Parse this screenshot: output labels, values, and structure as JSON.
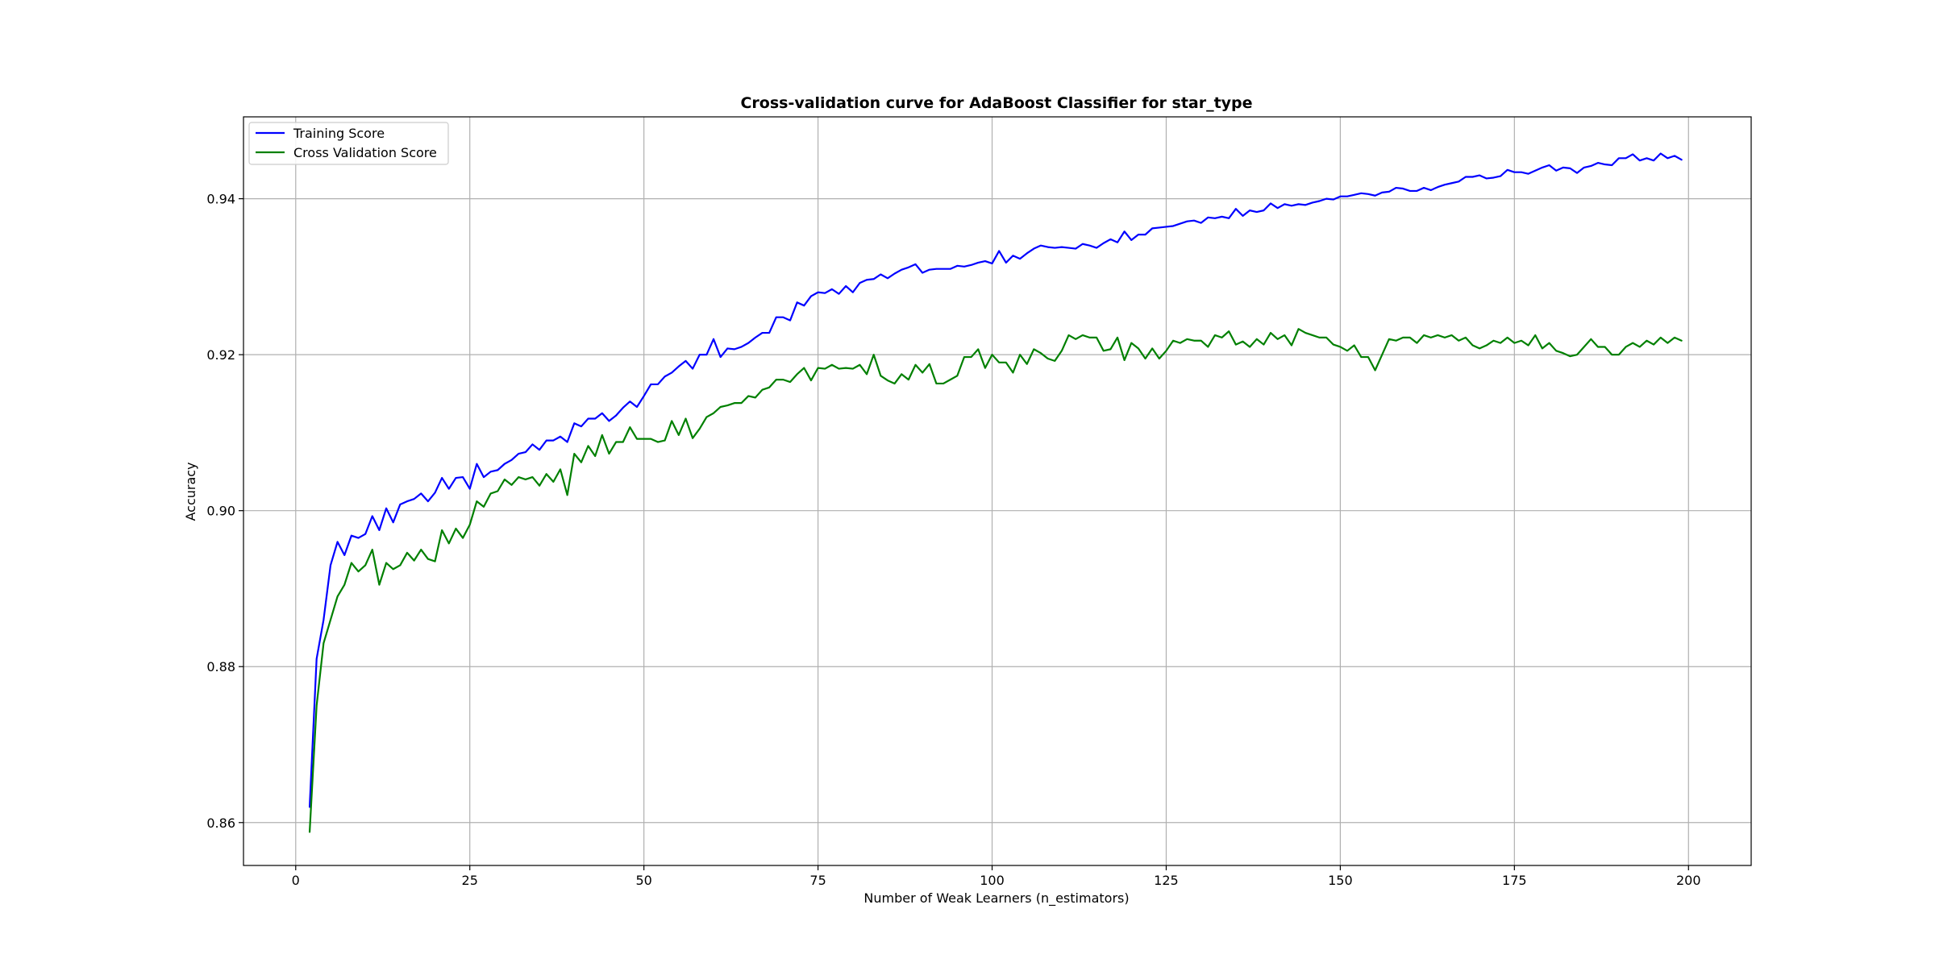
{
  "chart_data": {
    "type": "line",
    "title": "Cross-validation curve for AdaBoost Classifier for star_type",
    "xlabel": "Number of Weak Learners (n_estimators)",
    "ylabel": "Accuracy",
    "xlim": [
      -7.5,
      209
    ],
    "ylim": [
      0.8545,
      0.9505
    ],
    "xticks": [
      0,
      25,
      50,
      75,
      100,
      125,
      150,
      175,
      200
    ],
    "yticks": [
      0.86,
      0.88,
      0.9,
      0.92,
      0.94
    ],
    "ytick_labels": [
      "0.86",
      "0.88",
      "0.90",
      "0.92",
      "0.94"
    ],
    "grid": true,
    "legend": "top-left",
    "x": [
      2,
      3,
      4,
      5,
      6,
      7,
      8,
      9,
      10,
      11,
      12,
      13,
      14,
      15,
      16,
      17,
      18,
      19,
      20,
      21,
      22,
      23,
      24,
      25,
      26,
      27,
      28,
      29,
      30,
      31,
      32,
      33,
      34,
      35,
      36,
      37,
      38,
      39,
      40,
      41,
      42,
      43,
      44,
      45,
      46,
      47,
      48,
      49,
      50,
      51,
      52,
      53,
      54,
      55,
      56,
      57,
      58,
      59,
      60,
      61,
      62,
      63,
      64,
      65,
      66,
      67,
      68,
      69,
      70,
      71,
      72,
      73,
      74,
      75,
      76,
      77,
      78,
      79,
      80,
      81,
      82,
      83,
      84,
      85,
      86,
      87,
      88,
      89,
      90,
      91,
      92,
      93,
      94,
      95,
      96,
      97,
      98,
      99,
      100,
      101,
      102,
      103,
      104,
      105,
      106,
      107,
      108,
      109,
      110,
      111,
      112,
      113,
      114,
      115,
      116,
      117,
      118,
      119,
      120,
      121,
      122,
      123,
      124,
      125,
      126,
      127,
      128,
      129,
      130,
      131,
      132,
      133,
      134,
      135,
      136,
      137,
      138,
      139,
      140,
      141,
      142,
      143,
      144,
      145,
      146,
      147,
      148,
      149,
      150,
      151,
      152,
      153,
      154,
      155,
      156,
      157,
      158,
      159,
      160,
      161,
      162,
      163,
      164,
      165,
      166,
      167,
      168,
      169,
      170,
      171,
      172,
      173,
      174,
      175,
      176,
      177,
      178,
      179,
      180,
      181,
      182,
      183,
      184,
      185,
      186,
      187,
      188,
      189,
      190,
      191,
      192,
      193,
      194,
      195,
      196,
      197,
      198,
      199
    ],
    "series": [
      {
        "name": "Training Score",
        "color": "#0000ff",
        "values": [
          0.862,
          0.881,
          0.886,
          0.893,
          0.896,
          0.8943,
          0.8968,
          0.8965,
          0.897,
          0.8993,
          0.8975,
          0.9003,
          0.8985,
          0.9008,
          0.9012,
          0.9015,
          0.9022,
          0.9012,
          0.9023,
          0.9042,
          0.9028,
          0.9042,
          0.9043,
          0.9028,
          0.906,
          0.9043,
          0.905,
          0.9052,
          0.906,
          0.9065,
          0.9073,
          0.9075,
          0.9085,
          0.9078,
          0.909,
          0.909,
          0.9095,
          0.9088,
          0.9112,
          0.9108,
          0.9118,
          0.9118,
          0.9125,
          0.9115,
          0.9122,
          0.9132,
          0.914,
          0.9133,
          0.9147,
          0.9162,
          0.9162,
          0.9172,
          0.9177,
          0.9185,
          0.9192,
          0.9182,
          0.92,
          0.92,
          0.922,
          0.9197,
          0.9208,
          0.9207,
          0.921,
          0.9215,
          0.9222,
          0.9228,
          0.9228,
          0.9248,
          0.9248,
          0.9244,
          0.9267,
          0.9263,
          0.9275,
          0.928,
          0.9279,
          0.9284,
          0.9278,
          0.9288,
          0.928,
          0.9292,
          0.9296,
          0.9297,
          0.9303,
          0.9298,
          0.9304,
          0.9309,
          0.9312,
          0.9316,
          0.9305,
          0.9309,
          0.931,
          0.931,
          0.931,
          0.9314,
          0.9313,
          0.9315,
          0.9318,
          0.932,
          0.9317,
          0.9333,
          0.9318,
          0.9327,
          0.9323,
          0.933,
          0.9336,
          0.934,
          0.9338,
          0.9337,
          0.9338,
          0.9337,
          0.9336,
          0.9342,
          0.934,
          0.9337,
          0.9343,
          0.9348,
          0.9344,
          0.9358,
          0.9347,
          0.9354,
          0.9354,
          0.9362,
          0.9363,
          0.9364,
          0.9365,
          0.9368,
          0.9371,
          0.9372,
          0.9369,
          0.9376,
          0.9375,
          0.9377,
          0.9375,
          0.9387,
          0.9378,
          0.9385,
          0.9383,
          0.9385,
          0.9394,
          0.9388,
          0.9393,
          0.9391,
          0.9393,
          0.9392,
          0.9395,
          0.9397,
          0.94,
          0.9399,
          0.9403,
          0.9403,
          0.9405,
          0.9407,
          0.9406,
          0.9404,
          0.9408,
          0.9409,
          0.9414,
          0.9413,
          0.941,
          0.941,
          0.9414,
          0.9411,
          0.9415,
          0.9418,
          0.942,
          0.9422,
          0.9428,
          0.9428,
          0.943,
          0.9426,
          0.9427,
          0.9429,
          0.9437,
          0.9434,
          0.9434,
          0.9432,
          0.9436,
          0.944,
          0.9443,
          0.9436,
          0.944,
          0.9439,
          0.9433,
          0.944,
          0.9442,
          0.9446,
          0.9444,
          0.9443,
          0.9452,
          0.9452,
          0.9457,
          0.9449,
          0.9452,
          0.9449,
          0.9458,
          0.9452,
          0.9455,
          0.945
        ]
      },
      {
        "name": "Cross Validation Score",
        "color": "#008000",
        "values": [
          0.8588,
          0.875,
          0.883,
          0.886,
          0.889,
          0.8905,
          0.8933,
          0.8922,
          0.893,
          0.895,
          0.8905,
          0.8933,
          0.8925,
          0.893,
          0.8946,
          0.8936,
          0.895,
          0.8938,
          0.8935,
          0.8975,
          0.8958,
          0.8977,
          0.8965,
          0.8982,
          0.9012,
          0.9005,
          0.9022,
          0.9025,
          0.904,
          0.9033,
          0.9043,
          0.904,
          0.9043,
          0.9032,
          0.9047,
          0.9037,
          0.9053,
          0.902,
          0.9073,
          0.9062,
          0.9083,
          0.907,
          0.9097,
          0.9073,
          0.9088,
          0.9088,
          0.9107,
          0.9092,
          0.9092,
          0.9092,
          0.9088,
          0.909,
          0.9115,
          0.9097,
          0.9118,
          0.9093,
          0.9105,
          0.912,
          0.9125,
          0.9133,
          0.9135,
          0.9138,
          0.9138,
          0.9147,
          0.9145,
          0.9155,
          0.9158,
          0.9168,
          0.9168,
          0.9165,
          0.9175,
          0.9183,
          0.9167,
          0.9183,
          0.9182,
          0.9187,
          0.9182,
          0.9183,
          0.9182,
          0.9187,
          0.9175,
          0.92,
          0.9173,
          0.9167,
          0.9163,
          0.9175,
          0.9168,
          0.9187,
          0.9177,
          0.9188,
          0.9163,
          0.9163,
          0.9168,
          0.9173,
          0.9197,
          0.9197,
          0.9207,
          0.9183,
          0.92,
          0.919,
          0.919,
          0.9177,
          0.92,
          0.9188,
          0.9207,
          0.9202,
          0.9195,
          0.9192,
          0.9205,
          0.9225,
          0.922,
          0.9225,
          0.9222,
          0.9222,
          0.9205,
          0.9207,
          0.9222,
          0.9193,
          0.9215,
          0.9208,
          0.9195,
          0.9208,
          0.9195,
          0.9205,
          0.9218,
          0.9215,
          0.922,
          0.9218,
          0.9218,
          0.921,
          0.9225,
          0.9222,
          0.923,
          0.9213,
          0.9217,
          0.921,
          0.922,
          0.9213,
          0.9228,
          0.922,
          0.9225,
          0.9212,
          0.9233,
          0.9228,
          0.9225,
          0.9222,
          0.9222,
          0.9213,
          0.921,
          0.9205,
          0.9212,
          0.9197,
          0.9197,
          0.918,
          0.92,
          0.922,
          0.9218,
          0.9222,
          0.9222,
          0.9215,
          0.9225,
          0.9222,
          0.9225,
          0.9222,
          0.9225,
          0.9218,
          0.9222,
          0.9212,
          0.9208,
          0.9212,
          0.9218,
          0.9215,
          0.9222,
          0.9215,
          0.9218,
          0.9212,
          0.9225,
          0.9208,
          0.9215,
          0.9205,
          0.9202,
          0.9198,
          0.92,
          0.921,
          0.922,
          0.921,
          0.921,
          0.92,
          0.92,
          0.921,
          0.9215,
          0.921,
          0.9218,
          0.9213,
          0.9222,
          0.9215,
          0.9222,
          0.9218
        ]
      }
    ]
  }
}
